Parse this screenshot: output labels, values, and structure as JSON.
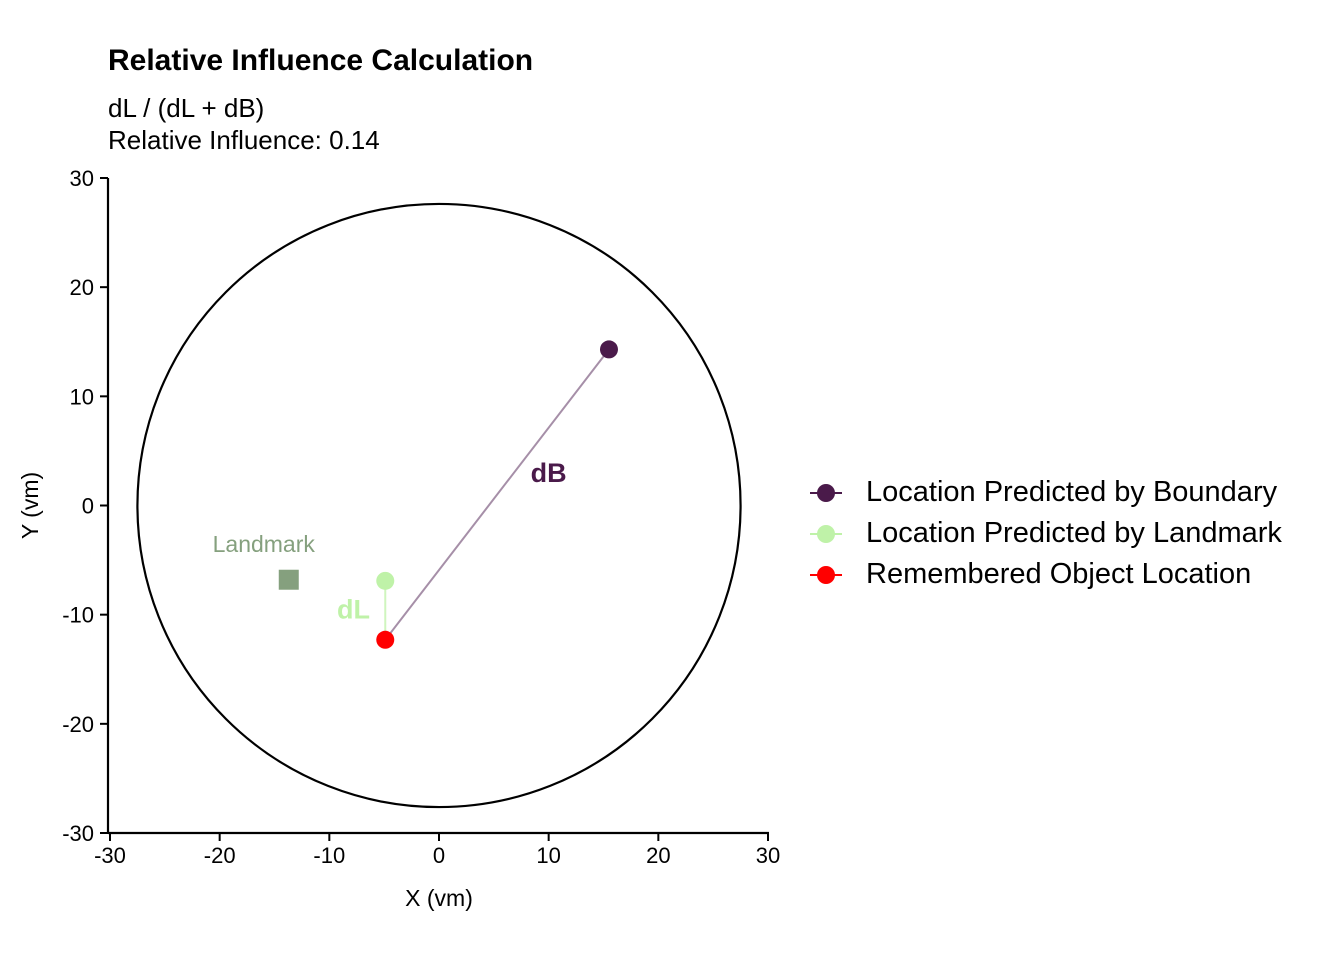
{
  "title": "Relative Influence Calculation",
  "subtitle": {
    "line1": "dL / (dL + dB)",
    "line2": "Relative Influence: 0.14"
  },
  "chart_data": {
    "type": "scatter",
    "xlabel": "X (vm)",
    "ylabel": "Y (vm)",
    "xlim": [
      -30,
      30
    ],
    "ylim": [
      -30,
      30
    ],
    "xticks": [
      -30,
      -20,
      -10,
      0,
      10,
      20,
      30
    ],
    "yticks": [
      -30,
      -20,
      -10,
      0,
      10,
      20,
      30
    ],
    "grid": false,
    "legend_position": "right",
    "arena": {
      "center": [
        0,
        0
      ],
      "radius": 27.5,
      "color": "#000000"
    },
    "landmark": {
      "label": "Landmark",
      "x": -13.7,
      "y": -6.8,
      "color": "#85A07E"
    },
    "points": [
      {
        "series": "Location Predicted by Boundary",
        "x": 15.5,
        "y": 14.3,
        "color": "#4A1A4A"
      },
      {
        "series": "Location Predicted by Landmark",
        "x": -4.9,
        "y": -6.9,
        "color": "#BFF2A8"
      },
      {
        "series": "Remembered Object Location",
        "x": -4.9,
        "y": -12.3,
        "color": "#FF0000"
      }
    ],
    "segments": [
      {
        "label": "dB",
        "from": [
          -4.9,
          -12.3
        ],
        "to": [
          15.5,
          14.3
        ],
        "color": "#A68FA8",
        "label_x": 10,
        "label_y": 2.8,
        "label_color": "#4A1A4A"
      },
      {
        "label": "dL",
        "from": [
          -4.9,
          -12.3
        ],
        "to": [
          -4.9,
          -6.9
        ],
        "color": "#CFF5BE",
        "label_x": -7.8,
        "label_y": -9.7,
        "label_color": "#BFF2A8"
      }
    ],
    "legend": [
      {
        "label": "Location Predicted by Boundary",
        "color": "#4A1A4A"
      },
      {
        "label": "Location Predicted by Landmark",
        "color": "#BFF2A8"
      },
      {
        "label": "Remembered Object Location",
        "color": "#FF0000"
      }
    ]
  }
}
